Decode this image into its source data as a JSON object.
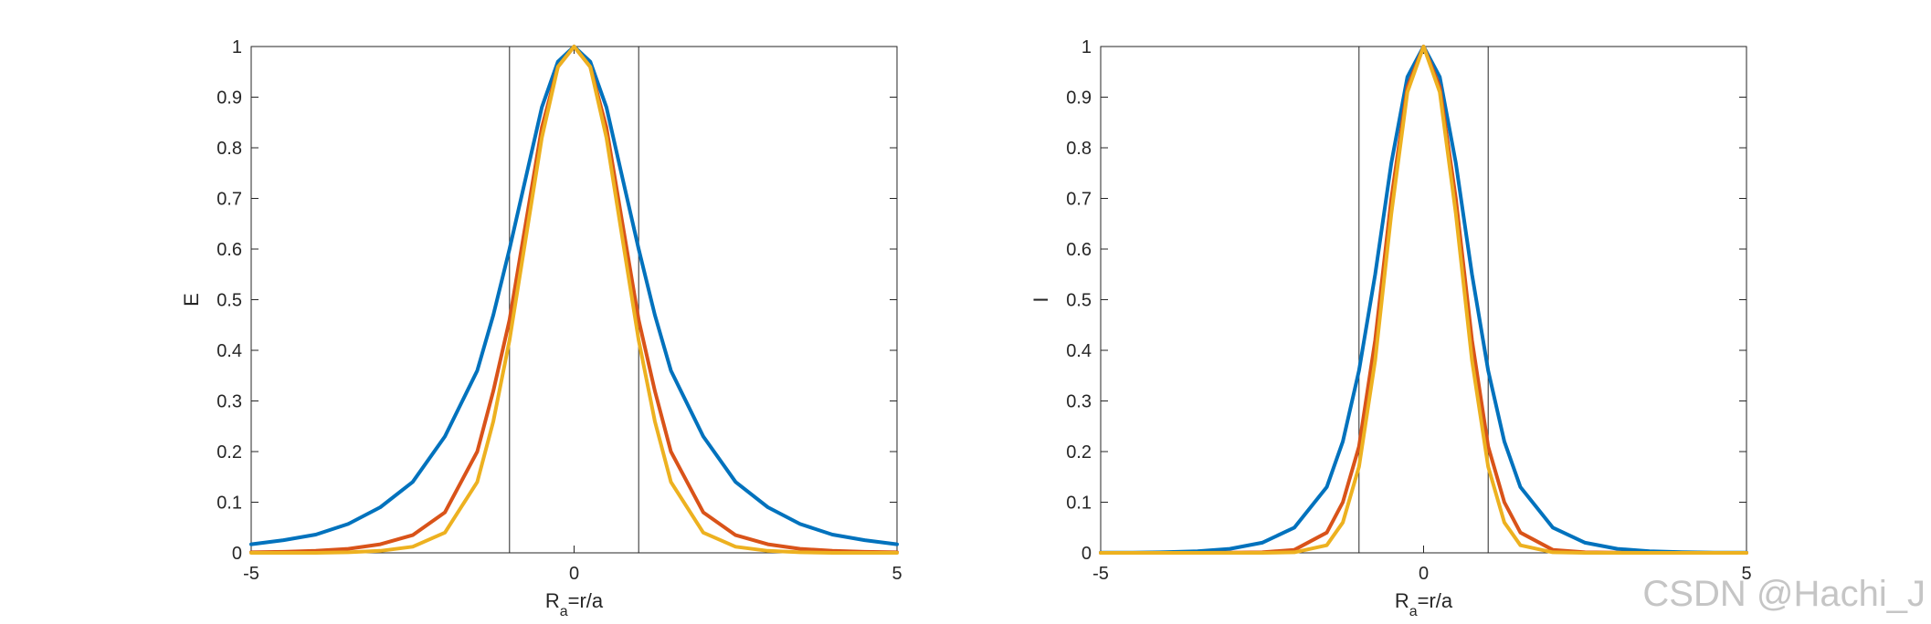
{
  "chart_data": [
    {
      "type": "line",
      "xlabel_main": "R",
      "xlabel_sub": "a",
      "xlabel_rest": "=r/a",
      "ylabel": "E",
      "xlim": [
        -5,
        5
      ],
      "ylim": [
        0,
        1
      ],
      "xticks": [
        "-5",
        "0",
        "5"
      ],
      "yticks": [
        "0",
        "0.1",
        "0.2",
        "0.3",
        "0.4",
        "0.5",
        "0.6",
        "0.7",
        "0.8",
        "0.9",
        "1"
      ],
      "vlines": [
        -1,
        1
      ],
      "grid": false,
      "series": [
        {
          "color": "#0072BD",
          "x": [
            -5,
            -4.5,
            -4,
            -3.5,
            -3,
            -2.5,
            -2,
            -1.5,
            -1.25,
            -1,
            -0.75,
            -0.5,
            -0.25,
            0,
            0.25,
            0.5,
            0.75,
            1,
            1.25,
            1.5,
            2,
            2.5,
            3,
            3.5,
            4,
            4.5,
            5
          ],
          "values": [
            0.017,
            0.025,
            0.036,
            0.057,
            0.09,
            0.14,
            0.23,
            0.36,
            0.47,
            0.6,
            0.74,
            0.88,
            0.97,
            1.0,
            0.97,
            0.88,
            0.74,
            0.6,
            0.47,
            0.36,
            0.23,
            0.14,
            0.09,
            0.057,
            0.036,
            0.025,
            0.017
          ]
        },
        {
          "color": "#D95319",
          "x": [
            -5,
            -4.5,
            -4,
            -3.5,
            -3,
            -2.5,
            -2,
            -1.5,
            -1.25,
            -1,
            -0.75,
            -0.5,
            -0.25,
            0,
            0.25,
            0.5,
            0.75,
            1,
            1.25,
            1.5,
            2,
            2.5,
            3,
            3.5,
            4,
            4.5,
            5
          ],
          "values": [
            0.001,
            0.002,
            0.004,
            0.008,
            0.017,
            0.035,
            0.08,
            0.2,
            0.32,
            0.46,
            0.65,
            0.84,
            0.96,
            1.0,
            0.96,
            0.84,
            0.65,
            0.46,
            0.32,
            0.2,
            0.08,
            0.035,
            0.017,
            0.008,
            0.004,
            0.002,
            0.001
          ]
        },
        {
          "color": "#EDB120",
          "x": [
            -5,
            -4.5,
            -4,
            -3.5,
            -3,
            -2.5,
            -2,
            -1.5,
            -1.25,
            -1,
            -0.75,
            -0.5,
            -0.25,
            0,
            0.25,
            0.5,
            0.75,
            1,
            1.25,
            1.5,
            2,
            2.5,
            3,
            3.5,
            4,
            4.5,
            5
          ],
          "values": [
            0,
            0,
            0,
            0.001,
            0.004,
            0.012,
            0.04,
            0.14,
            0.26,
            0.42,
            0.62,
            0.82,
            0.96,
            1.0,
            0.96,
            0.82,
            0.62,
            0.42,
            0.26,
            0.14,
            0.04,
            0.012,
            0.004,
            0.001,
            0,
            0,
            0
          ]
        }
      ]
    },
    {
      "type": "line",
      "xlabel_main": "R",
      "xlabel_sub": "a",
      "xlabel_rest": "=r/a",
      "ylabel": "I",
      "xlim": [
        -5,
        5
      ],
      "ylim": [
        0,
        1
      ],
      "xticks": [
        "-5",
        "0",
        "5"
      ],
      "yticks": [
        "0",
        "0.1",
        "0.2",
        "0.3",
        "0.4",
        "0.5",
        "0.6",
        "0.7",
        "0.8",
        "0.9",
        "1"
      ],
      "vlines": [
        -1,
        1
      ],
      "grid": false,
      "series": [
        {
          "color": "#0072BD",
          "x": [
            -5,
            -4.5,
            -4,
            -3.5,
            -3,
            -2.5,
            -2,
            -1.5,
            -1.25,
            -1,
            -0.75,
            -0.5,
            -0.25,
            0,
            0.25,
            0.5,
            0.75,
            1,
            1.25,
            1.5,
            2,
            2.5,
            3,
            3.5,
            4,
            4.5,
            5
          ],
          "values": [
            0.0003,
            0.0006,
            0.0013,
            0.003,
            0.008,
            0.02,
            0.05,
            0.13,
            0.22,
            0.36,
            0.55,
            0.77,
            0.94,
            1.0,
            0.94,
            0.77,
            0.55,
            0.36,
            0.22,
            0.13,
            0.05,
            0.02,
            0.008,
            0.003,
            0.0013,
            0.0006,
            0.0003
          ]
        },
        {
          "color": "#D95319",
          "x": [
            -5,
            -4.5,
            -4,
            -3.5,
            -3,
            -2.5,
            -2,
            -1.5,
            -1.25,
            -1,
            -0.75,
            -0.5,
            -0.25,
            0,
            0.25,
            0.5,
            0.75,
            1,
            1.25,
            1.5,
            2,
            2.5,
            3,
            3.5,
            4,
            4.5,
            5
          ],
          "values": [
            0,
            0,
            0,
            0,
            0.0003,
            0.001,
            0.006,
            0.04,
            0.1,
            0.21,
            0.42,
            0.7,
            0.92,
            1.0,
            0.92,
            0.7,
            0.42,
            0.21,
            0.1,
            0.04,
            0.006,
            0.001,
            0.0003,
            0,
            0,
            0,
            0
          ]
        },
        {
          "color": "#EDB120",
          "x": [
            -5,
            -4.5,
            -4,
            -3.5,
            -3,
            -2.5,
            -2,
            -1.5,
            -1.25,
            -1,
            -0.75,
            -0.5,
            -0.25,
            0,
            0.25,
            0.5,
            0.75,
            1,
            1.25,
            1.5,
            2,
            2.5,
            3,
            3.5,
            4,
            4.5,
            5
          ],
          "values": [
            0,
            0,
            0,
            0,
            0,
            0,
            0.001,
            0.015,
            0.06,
            0.17,
            0.38,
            0.67,
            0.91,
            1.0,
            0.91,
            0.67,
            0.38,
            0.17,
            0.06,
            0.015,
            0.001,
            0,
            0,
            0,
            0,
            0,
            0
          ]
        }
      ]
    }
  ],
  "watermark": "CSDN @Hachi_J"
}
